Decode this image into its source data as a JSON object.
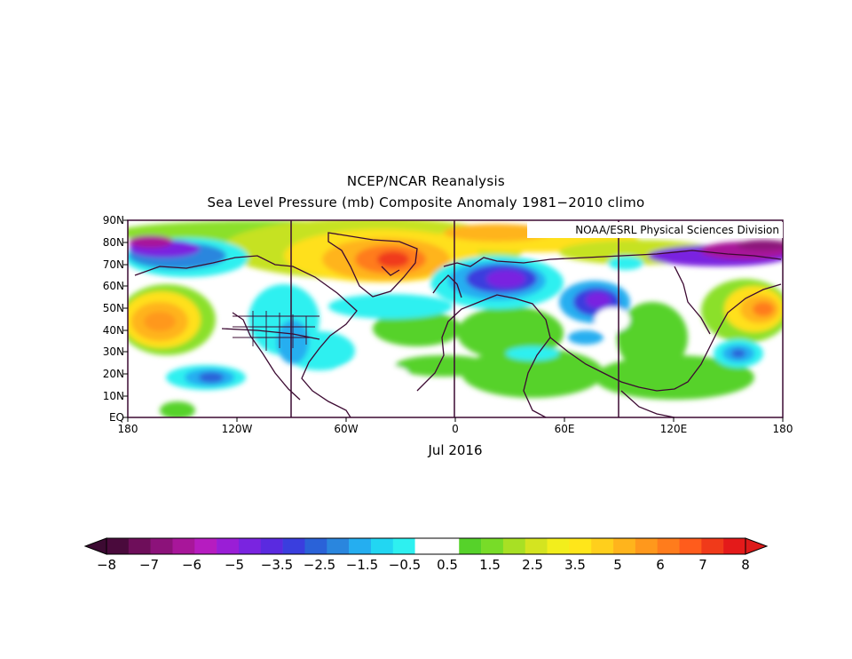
{
  "title": "NCEP/NCAR Reanalysis",
  "subtitle": "Sea Level Pressure (mb) Composite Anomaly 1981−2010 climo",
  "credit": "NOAA/ESRL Physical Sciences Division",
  "date": "Jul 2016",
  "lat_labels": [
    "90N",
    "80N",
    "70N",
    "60N",
    "50N",
    "40N",
    "30N",
    "20N",
    "10N",
    "EQ"
  ],
  "lon_labels": [
    "180",
    "120W",
    "60W",
    "0",
    "60E",
    "120E",
    "180"
  ],
  "colorbar": {
    "labels": [
      "−8",
      "−7",
      "−6",
      "−5",
      "−3.5",
      "−2.5",
      "−1.5",
      "−0.5",
      "0.5",
      "1.5",
      "2.5",
      "3.5",
      "5",
      "6",
      "7",
      "8"
    ],
    "colors": [
      "#4a0a3c",
      "#6e0e5a",
      "#8c127a",
      "#a8169a",
      "#b61cc0",
      "#9a1ed6",
      "#7a24e0",
      "#5a2ae0",
      "#3a3ede",
      "#2a62d8",
      "#2a86de",
      "#25aef0",
      "#22d6f2",
      "#2ef0f0",
      "#ffffff",
      "#ffffff",
      "#56d22a",
      "#78dc28",
      "#a8e024",
      "#d4e420",
      "#f2ee1c",
      "#ffe61a",
      "#ffcf1c",
      "#ffb41c",
      "#ff981c",
      "#ff7c1c",
      "#ff5c1c",
      "#f03a1a",
      "#e41a1a"
    ],
    "arrow_low": "#3c0a32",
    "arrow_high": "#dd1a1a"
  }
}
